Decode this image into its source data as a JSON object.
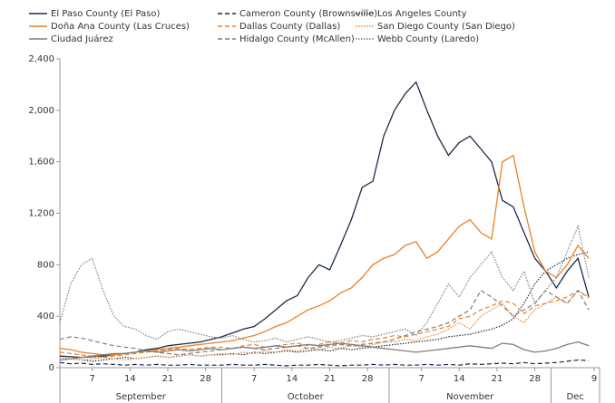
{
  "chart_data": {
    "type": "line",
    "x": [
      "09-01",
      "09-03",
      "09-05",
      "09-07",
      "09-09",
      "09-11",
      "09-13",
      "09-15",
      "09-17",
      "09-19",
      "09-21",
      "09-23",
      "09-25",
      "09-27",
      "09-29",
      "10-01",
      "10-03",
      "10-05",
      "10-07",
      "10-09",
      "10-11",
      "10-13",
      "10-15",
      "10-17",
      "10-19",
      "10-21",
      "10-23",
      "10-25",
      "10-27",
      "10-29",
      "10-31",
      "11-02",
      "11-04",
      "11-06",
      "11-08",
      "11-10",
      "11-12",
      "11-14",
      "11-16",
      "11-18",
      "11-20",
      "11-22",
      "11-24",
      "11-26",
      "11-28",
      "11-30",
      "12-02",
      "12-04",
      "12-06",
      "12-08"
    ],
    "xlim": [
      "09-01",
      "12-10"
    ],
    "xticks": [
      {
        "value": "09-07",
        "label": "7"
      },
      {
        "value": "09-14",
        "label": "14"
      },
      {
        "value": "09-21",
        "label": "21"
      },
      {
        "value": "09-28",
        "label": "28"
      },
      {
        "value": "10-07",
        "label": "7"
      },
      {
        "value": "10-14",
        "label": "14"
      },
      {
        "value": "10-21",
        "label": "21"
      },
      {
        "value": "10-28",
        "label": "28"
      },
      {
        "value": "11-07",
        "label": "7"
      },
      {
        "value": "11-14",
        "label": "14"
      },
      {
        "value": "11-21",
        "label": "21"
      },
      {
        "value": "11-28",
        "label": "28"
      },
      {
        "value": "12-09",
        "label": "9"
      }
    ],
    "months": [
      {
        "label": "September",
        "start": "09-01",
        "end": "10-01"
      },
      {
        "label": "October",
        "start": "10-01",
        "end": "11-01"
      },
      {
        "label": "November",
        "start": "11-01",
        "end": "12-01"
      },
      {
        "label": "Dec",
        "start": "12-01",
        "end": "12-10"
      }
    ],
    "ylim": [
      0,
      2400
    ],
    "yticks": [
      0,
      400,
      800,
      {
        "value": 1200,
        "label": "1,200"
      },
      {
        "value": 1600,
        "label": "1,600"
      },
      {
        "value": 2000,
        "label": "2,000"
      },
      {
        "value": 2400,
        "label": "2,400"
      }
    ],
    "series": [
      {
        "name": "El Paso County (El Paso)",
        "color": "#1b2a4a",
        "dash": "solid",
        "values": [
          90,
          85,
          80,
          85,
          90,
          100,
          110,
          120,
          140,
          150,
          170,
          180,
          190,
          200,
          220,
          240,
          270,
          300,
          320,
          380,
          450,
          520,
          560,
          700,
          800,
          760,
          950,
          1150,
          1400,
          1450,
          1800,
          2000,
          2130,
          2220,
          2000,
          1800,
          1650,
          1750,
          1800,
          1700,
          1600,
          1300,
          1250,
          1050,
          850,
          750,
          620,
          750,
          850,
          550
        ]
      },
      {
        "name": "Cameron County (Brownsville)",
        "color": "#1b2a4a",
        "dash": "dashed",
        "values": [
          40,
          30,
          35,
          25,
          30,
          25,
          20,
          25,
          20,
          25,
          20,
          20,
          25,
          20,
          20,
          20,
          25,
          20,
          20,
          25,
          20,
          15,
          20,
          20,
          25,
          20,
          15,
          20,
          20,
          25,
          20,
          25,
          20,
          20,
          25,
          20,
          25,
          20,
          30,
          25,
          30,
          35,
          30,
          40,
          30,
          35,
          40,
          50,
          60,
          55
        ]
      },
      {
        "name": "Los Angeles County",
        "color": "#1b2a4a",
        "dash": "dotted",
        "values": [
          60,
          70,
          60,
          50,
          60,
          70,
          80,
          70,
          80,
          90,
          80,
          90,
          100,
          90,
          100,
          100,
          110,
          100,
          120,
          110,
          120,
          130,
          120,
          130,
          140,
          130,
          150,
          140,
          150,
          160,
          170,
          180,
          190,
          200,
          210,
          220,
          240,
          250,
          260,
          280,
          300,
          330,
          380,
          500,
          650,
          750,
          800,
          850,
          880,
          900
        ]
      },
      {
        "name": "Doña Ana County (Las Cruces)",
        "color": "#e8822a",
        "dash": "solid",
        "values": [
          150,
          140,
          120,
          110,
          100,
          100,
          110,
          120,
          130,
          140,
          150,
          160,
          170,
          180,
          190,
          200,
          210,
          230,
          250,
          280,
          320,
          350,
          400,
          450,
          480,
          520,
          580,
          620,
          700,
          800,
          850,
          880,
          950,
          980,
          850,
          900,
          1000,
          1100,
          1150,
          1050,
          1000,
          1600,
          1650,
          1250,
          900,
          750,
          700,
          800,
          950,
          850
        ]
      },
      {
        "name": "Dallas County (Dallas)",
        "color": "#e8822a",
        "dash": "dashed",
        "values": [
          120,
          110,
          100,
          90,
          80,
          90,
          100,
          110,
          120,
          130,
          140,
          150,
          140,
          150,
          160,
          160,
          150,
          170,
          180,
          160,
          170,
          180,
          190,
          170,
          180,
          200,
          190,
          210,
          200,
          220,
          230,
          250,
          240,
          260,
          280,
          300,
          320,
          380,
          400,
          450,
          480,
          520,
          500,
          420,
          480,
          500,
          520,
          550,
          600,
          540
        ]
      },
      {
        "name": "San Diego County (San Diego)",
        "color": "#e8822a",
        "dash": "dotted",
        "values": [
          80,
          70,
          60,
          70,
          80,
          70,
          60,
          70,
          80,
          90,
          80,
          90,
          100,
          90,
          100,
          110,
          100,
          120,
          110,
          130,
          120,
          140,
          130,
          150,
          140,
          160,
          150,
          170,
          160,
          180,
          200,
          200,
          220,
          210,
          240,
          260,
          300,
          350,
          300,
          400,
          450,
          500,
          400,
          350,
          450,
          500,
          550,
          500,
          600,
          550
        ]
      },
      {
        "name": "Ciudad Juárez",
        "color": "#7f7f7f",
        "dash": "solid",
        "values": [
          60,
          70,
          80,
          90,
          100,
          110,
          110,
          120,
          130,
          120,
          130,
          140,
          130,
          140,
          150,
          140,
          150,
          160,
          150,
          160,
          170,
          160,
          170,
          180,
          170,
          180,
          190,
          180,
          170,
          160,
          150,
          140,
          130,
          120,
          130,
          140,
          150,
          160,
          170,
          160,
          150,
          190,
          180,
          140,
          120,
          130,
          150,
          180,
          200,
          170
        ]
      },
      {
        "name": "Hidalgo County (McAllen)",
        "color": "#7f7f7f",
        "dash": "dashed",
        "values": [
          220,
          240,
          230,
          210,
          190,
          170,
          160,
          150,
          130,
          120,
          110,
          100,
          110,
          120,
          130,
          140,
          150,
          160,
          150,
          140,
          150,
          160,
          170,
          150,
          160,
          170,
          180,
          170,
          180,
          190,
          200,
          220,
          250,
          280,
          300,
          320,
          350,
          400,
          450,
          600,
          550,
          480,
          400,
          450,
          500,
          600,
          550,
          500,
          600,
          450
        ]
      },
      {
        "name": "Webb County (Laredo)",
        "color": "#7f7f7f",
        "dash": "dotted",
        "values": [
          350,
          650,
          800,
          850,
          600,
          400,
          320,
          300,
          250,
          220,
          280,
          300,
          280,
          260,
          240,
          230,
          250,
          220,
          200,
          210,
          230,
          200,
          220,
          240,
          220,
          200,
          210,
          230,
          250,
          240,
          260,
          280,
          300,
          250,
          350,
          500,
          650,
          550,
          700,
          800,
          900,
          700,
          600,
          750,
          500,
          600,
          700,
          900,
          1100,
          700
        ]
      }
    ]
  }
}
